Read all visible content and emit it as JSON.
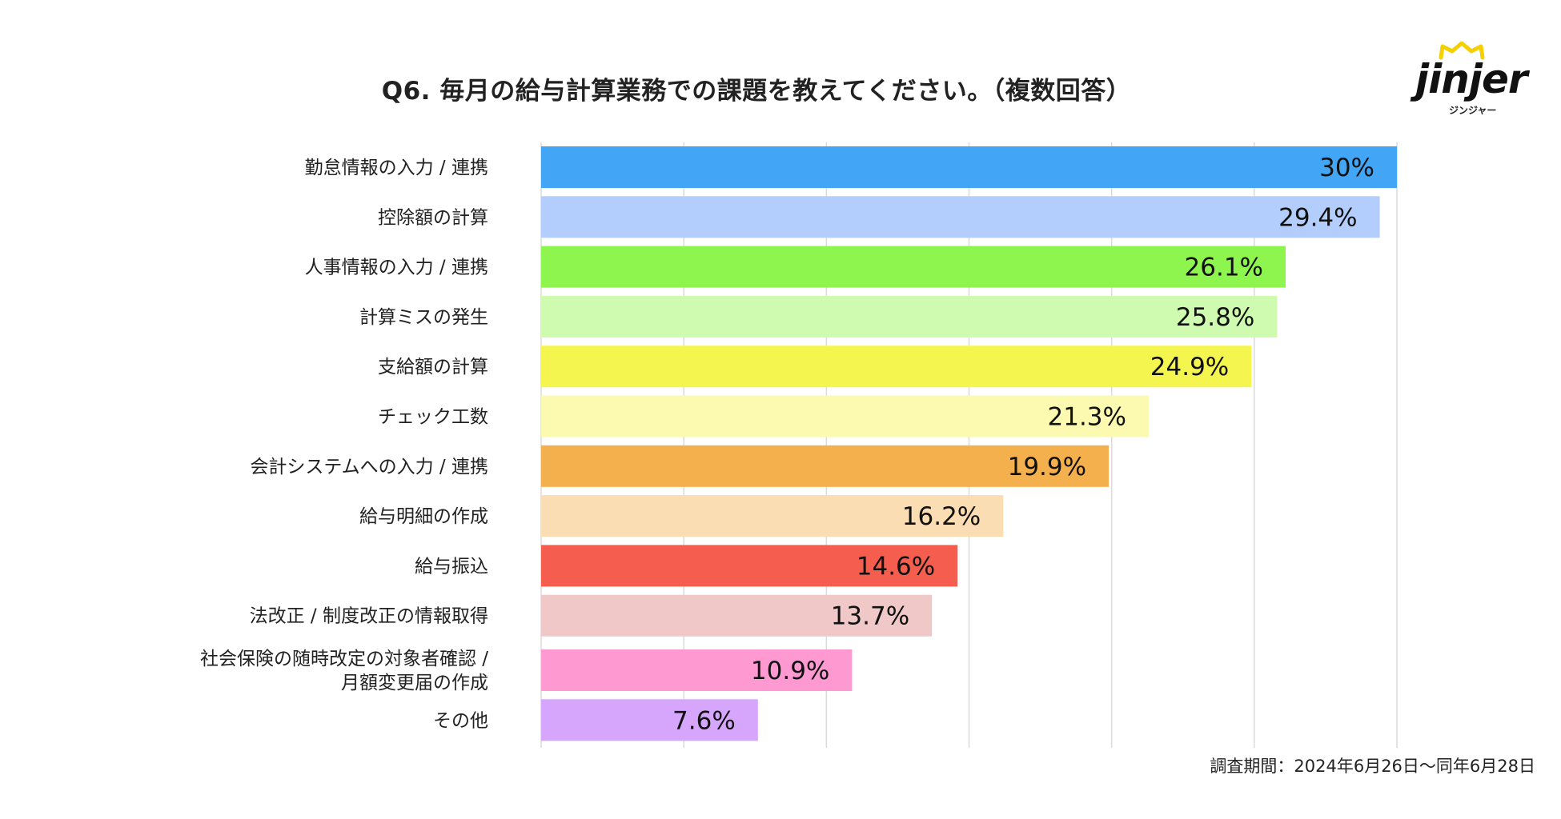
{
  "title": "Q6. 毎月の給与計算業務での課題を教えてください。（複数回答）",
  "logo": {
    "text": "jinjer",
    "subtext": "ジンジャー",
    "accent_color": "#F5D000"
  },
  "footer": {
    "survey_period": "調査期間：2024年6月26日〜同年6月28日"
  },
  "chart_data": {
    "type": "bar",
    "orientation": "horizontal",
    "title": "Q6. 毎月の給与計算業務での課題を教えてください。（複数回答）",
    "xlabel": "",
    "ylabel": "",
    "xlim": [
      0,
      30
    ],
    "grid": true,
    "legend": "none",
    "unit": "%",
    "categories": [
      [
        "勤怠情報の入力 / 連携"
      ],
      [
        "控除額の計算"
      ],
      [
        "人事情報の入力 / 連携"
      ],
      [
        "計算ミスの発生"
      ],
      [
        "支給額の計算"
      ],
      [
        "チェック工数"
      ],
      [
        "会計システムへの入力 / 連携"
      ],
      [
        "給与明細の作成"
      ],
      [
        "給与振込"
      ],
      [
        "法改正 / 制度改正の情報取得"
      ],
      [
        "社会保険の随時改定の対象者確認 /",
        "月額変更届の作成"
      ],
      [
        "その他"
      ]
    ],
    "values": [
      30,
      29.4,
      26.1,
      25.8,
      24.9,
      21.3,
      19.9,
      16.2,
      14.6,
      13.7,
      10.9,
      7.6
    ],
    "value_labels": [
      "30%",
      "29.4%",
      "26.1%",
      "25.8%",
      "24.9%",
      "21.3%",
      "19.9%",
      "16.2%",
      "14.6%",
      "13.7%",
      "10.9%",
      "7.6%"
    ],
    "colors": [
      "#42A5F5",
      "#B3CDFD",
      "#8EF54E",
      "#CEFBB0",
      "#F5F550",
      "#FCF9B0",
      "#F5B04E",
      "#FADDB2",
      "#F55E4F",
      "#F0C8C8",
      "#FE99D2",
      "#D6A6FD"
    ]
  }
}
